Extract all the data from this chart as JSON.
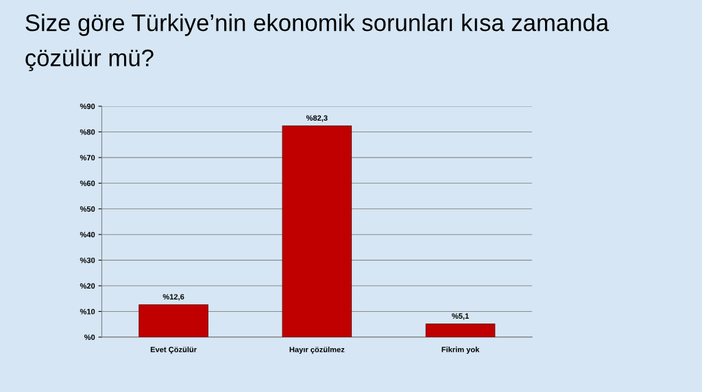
{
  "chart_data": {
    "type": "bar",
    "title": "Size göre Türkiye’nin ekonomik sorunları kısa zamanda\nçözülür mü?",
    "categories": [
      "Evet Çözülür",
      "Hayır çözülmez",
      "Fikrim yok"
    ],
    "values": [
      12.6,
      82.3,
      5.1
    ],
    "value_labels": [
      "%12,6",
      "%82,3",
      "%5,1"
    ],
    "color": "#c00000",
    "ylim": [
      0,
      90
    ],
    "yticks": [
      {
        "value": 0,
        "label": "%0"
      },
      {
        "value": 10,
        "label": "%10"
      },
      {
        "value": 20,
        "label": "%20"
      },
      {
        "value": 30,
        "label": "%30"
      },
      {
        "value": 40,
        "label": "%40"
      },
      {
        "value": 50,
        "label": "%50"
      },
      {
        "value": 60,
        "label": "%60"
      },
      {
        "value": 70,
        "label": "%70"
      },
      {
        "value": 80,
        "label": "%80"
      },
      {
        "value": 90,
        "label": "%90"
      }
    ],
    "grid": "y"
  }
}
